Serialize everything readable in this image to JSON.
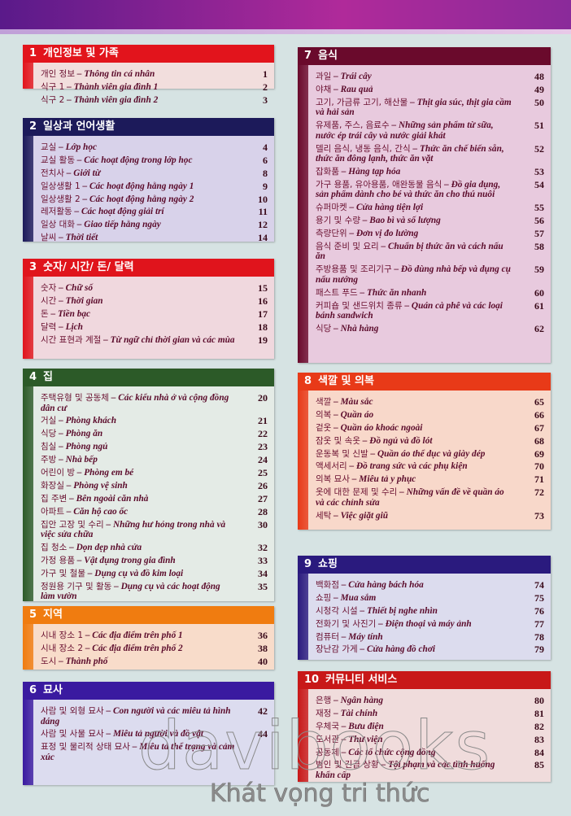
{
  "sections": [
    {
      "num": "1",
      "title": "개인정보 및 가족",
      "color": "#e2141c",
      "body": "#f2dedd",
      "entries": [
        {
          "ko": "개인 정보",
          "vi": "Thông tin cá nhân",
          "page": "1"
        },
        {
          "ko": "식구 1",
          "vi": "Thành viên gia đình 1",
          "page": "2"
        },
        {
          "ko": "식구 2",
          "vi": "Thành viên gia đình 2",
          "page": "3"
        }
      ]
    },
    {
      "num": "2",
      "title": "일상과 언어생활",
      "color": "#1c1a5a",
      "body": "#d8d2ea",
      "entries": [
        {
          "ko": "교실",
          "vi": "Lớp học",
          "page": "4"
        },
        {
          "ko": "교실 활동",
          "vi": "Các hoạt động trong lớp học",
          "page": "6"
        },
        {
          "ko": "전치사",
          "vi": "Giới từ",
          "page": "8"
        },
        {
          "ko": "일상생활 1",
          "vi": "Các hoạt động hằng ngày 1",
          "page": "9"
        },
        {
          "ko": "일상생활 2",
          "vi": "Các hoạt động hằng ngày 2",
          "page": "10"
        },
        {
          "ko": "레저활동",
          "vi": "Các hoạt động giải trí",
          "page": "11"
        },
        {
          "ko": "일상 대화",
          "vi": "Giao tiếp hằng ngày",
          "page": "12"
        },
        {
          "ko": "날씨",
          "vi": "Thời tiết",
          "page": "14"
        }
      ]
    },
    {
      "num": "3",
      "title": "숫자/ 시간/ 돈/ 달력",
      "color": "#e0141c",
      "body": "#f0d8de",
      "entries": [
        {
          "ko": "숫자",
          "vi": "Chữ số",
          "page": "15"
        },
        {
          "ko": "시간",
          "vi": "Thời gian",
          "page": "16"
        },
        {
          "ko": "돈",
          "vi": "Tiền bạc",
          "page": "17"
        },
        {
          "ko": "달력",
          "vi": "Lịch",
          "page": "18"
        },
        {
          "ko": "시간 표현과 계절",
          "vi": "Từ ngữ chỉ thời gian và các mùa",
          "page": "19"
        }
      ]
    },
    {
      "num": "4",
      "title": "집",
      "color": "#2c5a28",
      "body": "#e4ebe6",
      "entries": [
        {
          "ko": "주택유형 및 공동체",
          "vi": "Các kiểu nhà ở và cộng đồng dân cư",
          "page": "20"
        },
        {
          "ko": "거실",
          "vi": "Phòng khách",
          "page": "21"
        },
        {
          "ko": "식당",
          "vi": "Phòng ăn",
          "page": "22"
        },
        {
          "ko": "침실",
          "vi": "Phòng ngủ",
          "page": "23"
        },
        {
          "ko": "주방",
          "vi": "Nhà bếp",
          "page": "24"
        },
        {
          "ko": "어린이 방",
          "vi": "Phòng em bé",
          "page": "25"
        },
        {
          "ko": "화장실",
          "vi": "Phòng vệ sinh",
          "page": "26"
        },
        {
          "ko": "집 주변",
          "vi": "Bên ngoài căn nhà",
          "page": "27"
        },
        {
          "ko": "아파트",
          "vi": "Căn hộ cao ốc",
          "page": "28"
        },
        {
          "ko": "집안 고장 및 수리",
          "vi": "Những hư hỏng trong nhà và việc sửa chữa",
          "page": "30"
        },
        {
          "ko": "집 청소",
          "vi": "Dọn dẹp nhà cửa",
          "page": "32"
        },
        {
          "ko": "가정 용품",
          "vi": "Vật dụng trong gia đình",
          "page": "33"
        },
        {
          "ko": "가구 및 철물",
          "vi": "Dụng cụ và đồ kim loại",
          "page": "34"
        },
        {
          "ko": "정원용 기구 및 활동",
          "vi": "Dụng cụ và các hoạt động làm vườn",
          "page": "35"
        }
      ]
    },
    {
      "num": "5",
      "title": "지역",
      "color": "#f07c10",
      "body": "#f8dcca",
      "entries": [
        {
          "ko": "시내 장소 1",
          "vi": "Các địa điểm trên phố 1",
          "page": "36"
        },
        {
          "ko": "시내 장소 2",
          "vi": "Các địa điểm trên phố 2",
          "page": "38"
        },
        {
          "ko": "도시",
          "vi": "Thành phố",
          "page": "40"
        }
      ]
    },
    {
      "num": "6",
      "title": "묘사",
      "color": "#3a1aa0",
      "body": "#dcdcef",
      "entries": [
        {
          "ko": "사람 및 외형 묘사",
          "vi": "Con người và các miêu tả hình dáng",
          "page": "42"
        },
        {
          "ko": "사람 및 사물 묘사",
          "vi": "Miêu tả người và đồ vật",
          "page": "44"
        },
        {
          "ko": "표정 및 물리적 상태 묘사",
          "vi": "Miêu tả thể trạng và cảm xúc",
          "page": ""
        }
      ]
    },
    {
      "num": "7",
      "title": "음식",
      "color": "#6a0a2c",
      "body": "#e8cade",
      "entries": [
        {
          "ko": "과일",
          "vi": "Trái cây",
          "page": "48"
        },
        {
          "ko": "야채",
          "vi": "Rau quả",
          "page": "49"
        },
        {
          "ko": "고기, 가금류 고기, 해산물",
          "vi": "Thịt gia súc, thịt gia cầm và hải sản",
          "page": "50"
        },
        {
          "ko": "유제품, 주스, 음료수",
          "vi": "Những sản phẩm từ sữa, nước ép trái cây và nước giải khát",
          "page": "51"
        },
        {
          "ko": "델리 음식, 냉동 음식, 간식",
          "vi": "Thức ăn chế biến sẵn, thức ăn đông lạnh, thức ăn vặt",
          "page": "52"
        },
        {
          "ko": "잡화품",
          "vi": "Hàng tạp hóa",
          "page": "53"
        },
        {
          "ko": "가구 용품, 유아용품, 애완동물 음식",
          "vi": "Đồ gia dụng, sản phẩm dành cho bé và thức ăn cho thú nuôi",
          "page": "54"
        },
        {
          "ko": "슈퍼마켓",
          "vi": "Cửa hàng tiện lợi",
          "page": "55"
        },
        {
          "ko": "용기 및 수량",
          "vi": "Bao bì và số lượng",
          "page": "56"
        },
        {
          "ko": "측량단위",
          "vi": "Đơn vị đo lường",
          "page": "57"
        },
        {
          "ko": "음식 준비 및 요리",
          "vi": "Chuẩn bị thức ăn và cách nấu ăn",
          "page": "58"
        },
        {
          "ko": "주방용품 및 조리기구",
          "vi": "Đồ dùng nhà bếp và dụng cụ nấu nướng",
          "page": "59"
        },
        {
          "ko": "패스트 푸드",
          "vi": "Thức ăn nhanh",
          "page": "60"
        },
        {
          "ko": "커피숍 및 샌드위치 종류",
          "vi": "Quán cà phê và các loại bánh sandwich",
          "page": "61"
        },
        {
          "ko": "식당",
          "vi": "Nhà hàng",
          "page": "62"
        }
      ]
    },
    {
      "num": "8",
      "title": "색깔 및 의복",
      "color": "#e83a18",
      "body": "#f8d8ca",
      "entries": [
        {
          "ko": "색깔",
          "vi": "Màu sắc",
          "page": "65"
        },
        {
          "ko": "의복",
          "vi": "Quần áo",
          "page": "66"
        },
        {
          "ko": "겉옷",
          "vi": "Quần áo khoác ngoài",
          "page": "67"
        },
        {
          "ko": "잠옷 및 속옷",
          "vi": "Đồ ngủ và đồ lót",
          "page": "68"
        },
        {
          "ko": "운동복 및 신발",
          "vi": "Quần áo thể dục và giày dép",
          "page": "69"
        },
        {
          "ko": "액세서리",
          "vi": "Đồ trang sức và các phụ kiện",
          "page": "70"
        },
        {
          "ko": "의복 묘사",
          "vi": "Miêu tả y phục",
          "page": "71"
        },
        {
          "ko": "옷에 대한 문제 및 수리",
          "vi": "Những vấn đề về quần áo và các chỉnh sửa",
          "page": "72"
        },
        {
          "ko": "세탁",
          "vi": "Việc giặt giũ",
          "page": "73"
        }
      ]
    },
    {
      "num": "9",
      "title": "쇼핑",
      "color": "#2a1a7e",
      "body": "#dcdcee",
      "entries": [
        {
          "ko": "백화점",
          "vi": "Cửa hàng bách hóa",
          "page": "74"
        },
        {
          "ko": "쇼핑",
          "vi": "Mua sắm",
          "page": "75"
        },
        {
          "ko": "시청각 시설",
          "vi": "Thiết bị nghe nhìn",
          "page": "76"
        },
        {
          "ko": "전화기 및 사진기",
          "vi": "Điện thoại và máy ảnh",
          "page": "77"
        },
        {
          "ko": "컴퓨터",
          "vi": "Máy tính",
          "page": "78"
        },
        {
          "ko": "장난감 가게",
          "vi": "Cửa hàng đồ chơi",
          "page": "79"
        }
      ]
    },
    {
      "num": "10",
      "title": "커뮤니티 서비스",
      "color": "#c81818",
      "body": "#f0dcdc",
      "entries": [
        {
          "ko": "은행",
          "vi": "Ngân hàng",
          "page": "80"
        },
        {
          "ko": "재정",
          "vi": "Tài chính",
          "page": "81"
        },
        {
          "ko": "우체국",
          "vi": "Bưu điện",
          "page": "82"
        },
        {
          "ko": "도서관",
          "vi": "Thư viện",
          "page": "83"
        },
        {
          "ko": "공동체",
          "vi": "Các tổ chức cộng đồng",
          "page": "84"
        },
        {
          "ko": "범인 및 긴급 상황",
          "vi": "Tội phạm và các tình huống khẩn cấp",
          "page": "85"
        }
      ]
    }
  ],
  "separator": " – ",
  "watermark": {
    "brand": "davibooks",
    "slogan": "Khát vọng tri thức"
  }
}
